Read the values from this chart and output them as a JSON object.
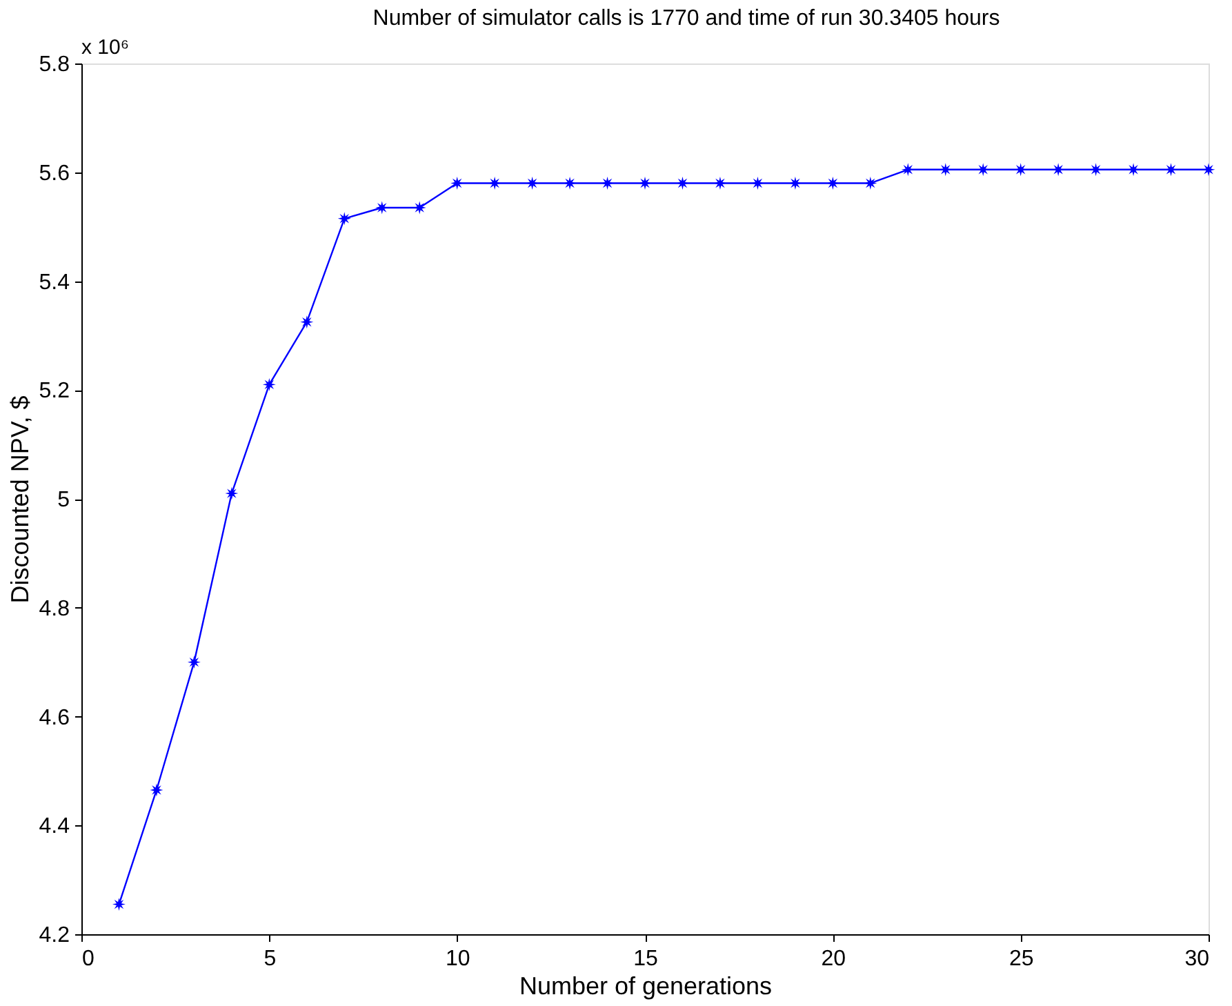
{
  "chart_data": {
    "type": "line",
    "title": "Number of simulator calls is 1770 and time of run 30.3405 hours",
    "xlabel": "Number of generations",
    "ylabel": "Discounted NPV, $",
    "annotations": [
      "x 10⁶"
    ],
    "x": [
      1,
      2,
      3,
      4,
      5,
      6,
      7,
      8,
      9,
      10,
      11,
      12,
      13,
      14,
      15,
      16,
      17,
      18,
      19,
      20,
      21,
      22,
      23,
      24,
      25,
      26,
      27,
      28,
      29,
      30
    ],
    "series": [
      {
        "color": "#0000ff",
        "values": [
          4.255,
          4.465,
          4.7,
          5.01,
          5.21,
          5.325,
          5.515,
          5.535,
          5.535,
          5.58,
          5.58,
          5.58,
          5.58,
          5.58,
          5.58,
          5.58,
          5.58,
          5.58,
          5.58,
          5.58,
          5.58,
          5.605,
          5.605,
          5.605,
          5.605,
          5.605,
          5.605,
          5.605,
          5.605,
          5.605
        ]
      }
    ],
    "xlim": [
      0,
      30
    ],
    "xticks": [
      0,
      5,
      10,
      15,
      20,
      25,
      30
    ],
    "ylim": [
      4.2,
      5.8
    ],
    "yticks": [
      4.2,
      4.4,
      4.6,
      4.8,
      5,
      5.2,
      5.4,
      5.6,
      5.8
    ],
    "marker": "star",
    "line_style": "solid",
    "grid": false
  }
}
